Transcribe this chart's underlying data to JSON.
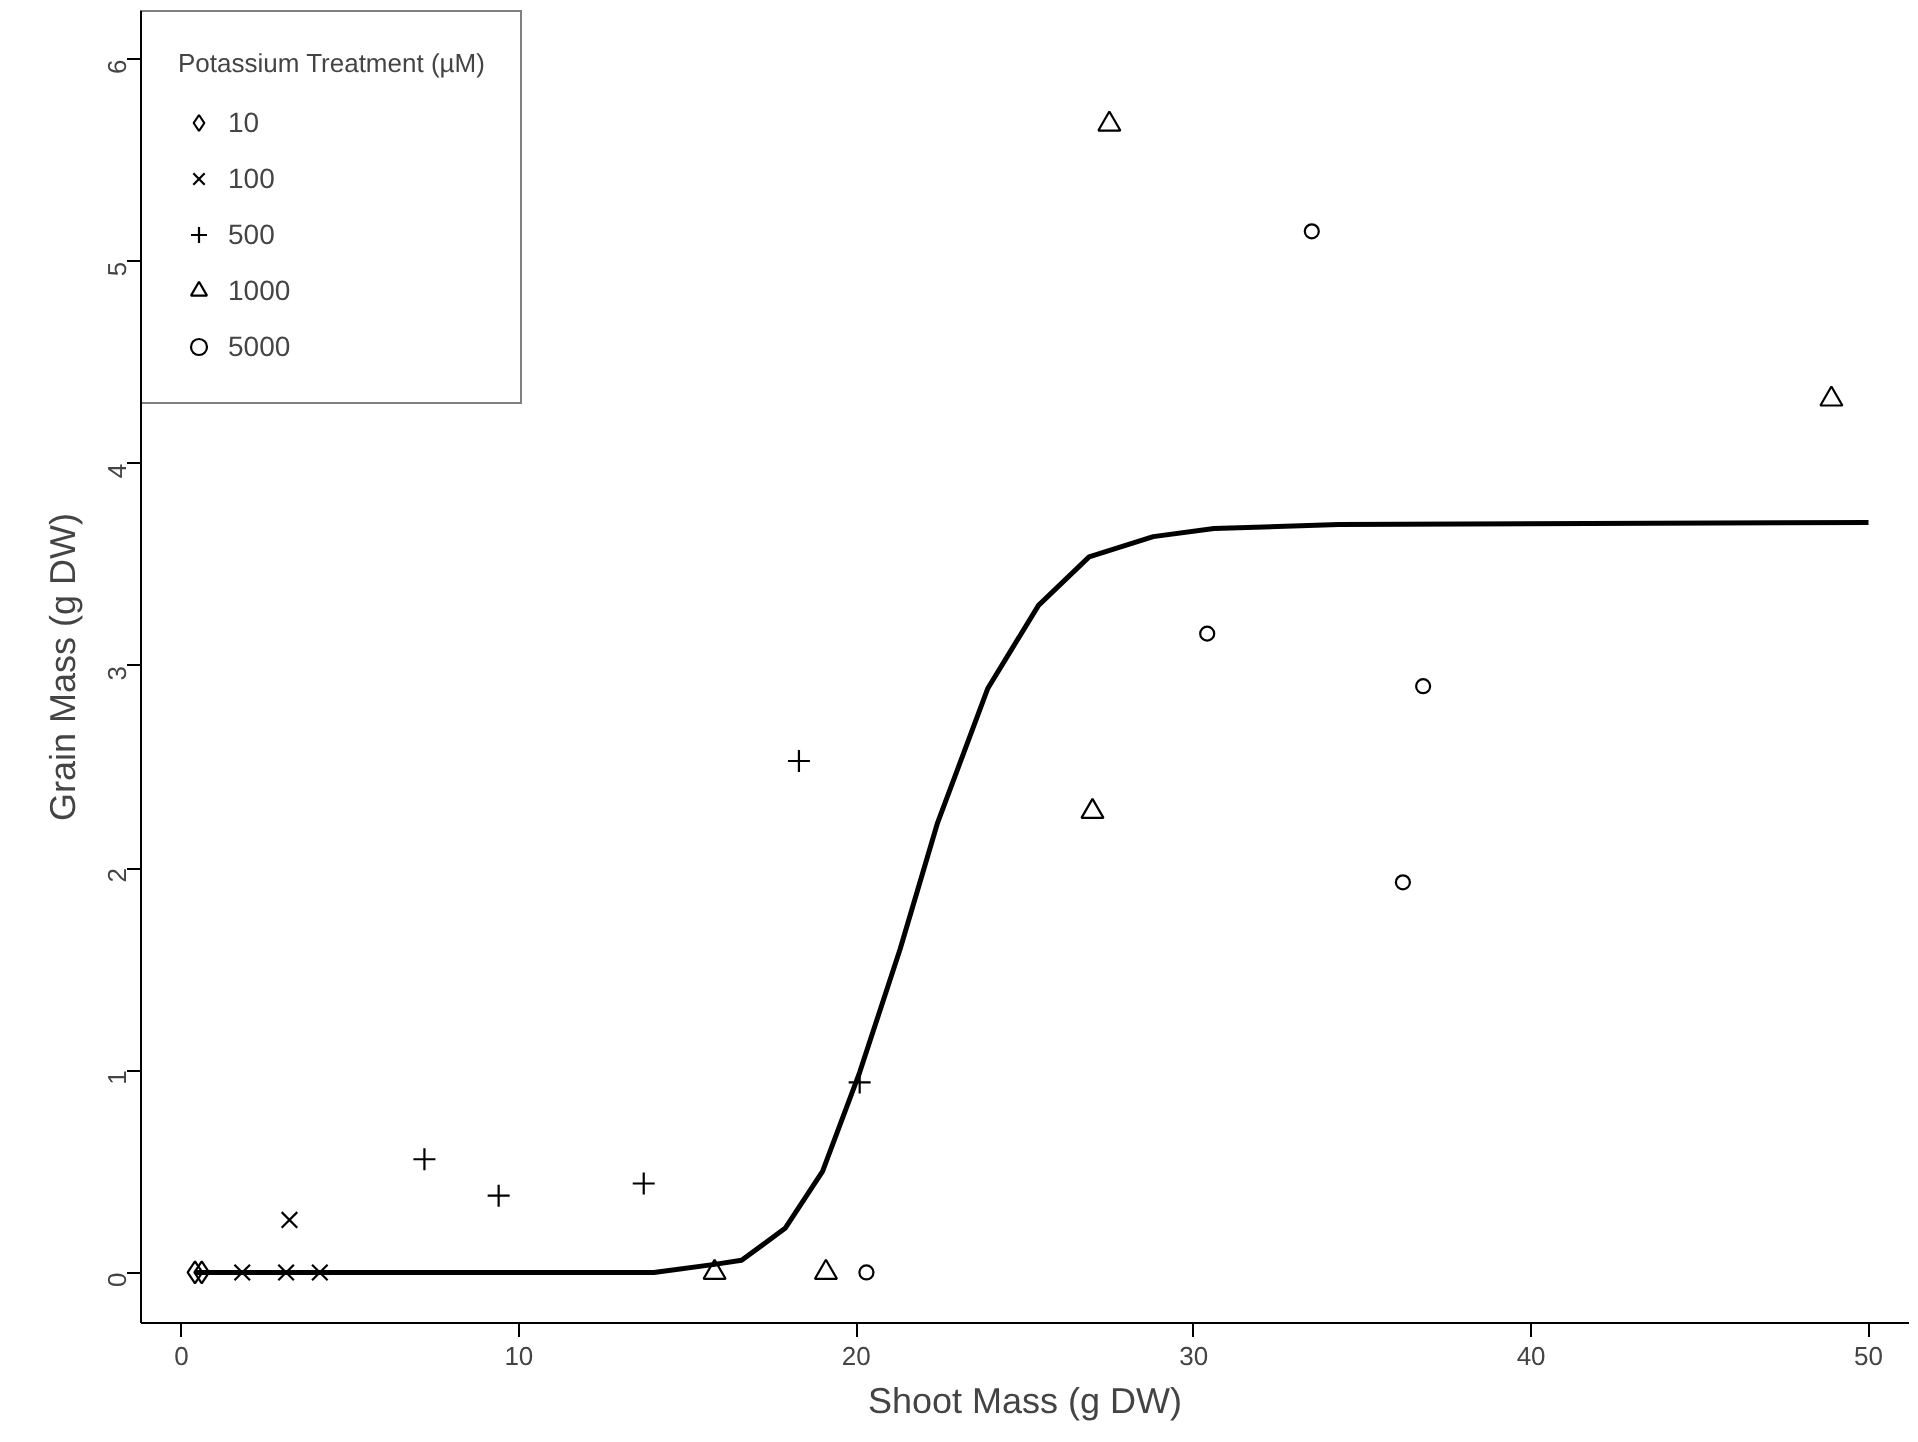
{
  "chart_data": {
    "type": "scatter",
    "xlabel": "Shoot Mass (g DW)",
    "ylabel": "Grain Mass (g DW)",
    "legend_title": "Potassium Treatment (µM)",
    "legend": "top left",
    "grid": false,
    "xlim": [
      -1.2,
      51.2
    ],
    "ylim": [
      -0.25,
      6.24
    ],
    "xticks": [
      0,
      10,
      20,
      30,
      40,
      50
    ],
    "yticks": [
      0,
      1,
      2,
      3,
      4,
      5,
      6
    ],
    "series": [
      {
        "name": "10",
        "color": "#000000",
        "marker": "diamond",
        "x": [
          0.4,
          0.6
        ],
        "values": [
          0,
          0
        ]
      },
      {
        "name": "100",
        "color": "#000000",
        "marker": "cross",
        "x": [
          1.8,
          3.1,
          4.1,
          3.2
        ],
        "values": [
          0,
          0,
          0,
          0.26
        ]
      },
      {
        "name": "500",
        "color": "#000000",
        "marker": "plus",
        "x": [
          7.2,
          9.4,
          13.7,
          18.3,
          20.1
        ],
        "values": [
          0.56,
          0.38,
          0.44,
          2.53,
          0.94
        ]
      },
      {
        "name": "1000",
        "color": "#000000",
        "marker": "triangle",
        "x": [
          15.8,
          19.1,
          27.0,
          27.5,
          48.9
        ],
        "values": [
          0,
          0,
          2.28,
          5.68,
          4.32
        ]
      },
      {
        "name": "5000",
        "color": "#000000",
        "marker": "circle",
        "x": [
          20.3,
          33.5,
          30.4,
          36.8,
          36.2
        ],
        "values": [
          0,
          5.15,
          3.16,
          2.9,
          1.93
        ]
      },
      {
        "type": "line",
        "color": "#000000",
        "marker": "none",
        "x": [
          0.4,
          14,
          15.8,
          16.6,
          17.9,
          19.0,
          20.1,
          21.3,
          22.4,
          23.9,
          25.4,
          26.9,
          28.8,
          30.6,
          34.3,
          50
        ],
        "values": [
          0,
          0,
          0.04,
          0.06,
          0.22,
          0.5,
          0.99,
          1.6,
          2.22,
          2.89,
          3.3,
          3.54,
          3.64,
          3.68,
          3.7,
          3.71
        ]
      }
    ]
  }
}
